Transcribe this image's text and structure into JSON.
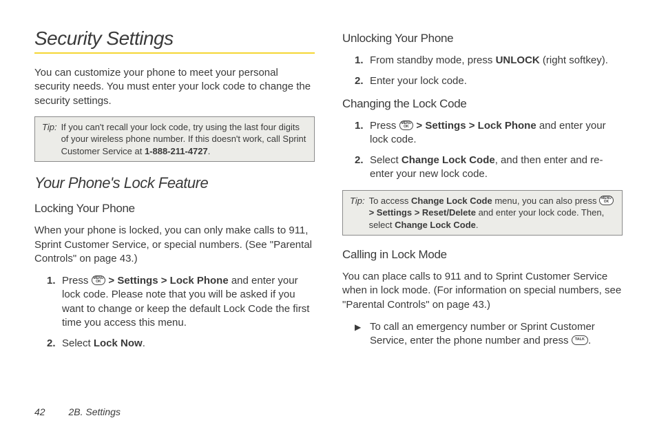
{
  "colors": {
    "accent_underline": "#f5d633",
    "tip_bg": "#ecece8",
    "tip_border": "#8a8a8a",
    "text": "#3a3a3a",
    "page_bg": "#ffffff"
  },
  "title": "Security Settings",
  "intro": "You can customize your phone to meet your personal security needs. You must enter your lock code to change the security settings.",
  "tip1_label": "Tip:",
  "tip1_text_a": "If you can't recall your lock code, try using the last four digits of your wireless phone number. If this doesn't work, call Sprint Customer Service at ",
  "tip1_phone": "1-888-211-4727",
  "tip1_text_b": ".",
  "h2_lock": "Your Phone's Lock Feature",
  "h3_locking": "Locking Your Phone",
  "locking_intro": "When your phone is locked, you can only make calls to 911, Sprint Customer Service, or special numbers. (See \"Parental Controls\" on page 43.)",
  "lock_step1_a": "Press ",
  "menu_ok_l1": "MENU",
  "menu_ok_l2": "OK",
  "gt": ">",
  "nav_settings": "Settings",
  "nav_lockphone": "Lock Phone",
  "lock_step1_b": " and enter your lock code. Please note that you will be asked if you want to change or keep the default Lock Code the first time you access this menu.",
  "lock_step2_a": "Select ",
  "lock_now": "Lock Now",
  "lock_step2_b": ".",
  "h3_unlock": "Unlocking Your Phone",
  "unlock_step1_a": "From standby mode, press ",
  "unlock_key": "UNLOCK",
  "unlock_step1_b": " (right softkey).",
  "unlock_step2": "Enter your lock code.",
  "h3_change": "Changing the Lock Code",
  "change_step1_a": "Press ",
  "change_step1_b": " and enter your lock code.",
  "change_step2_a": "Select ",
  "change_lock_code": "Change Lock Code",
  "change_step2_b": ", and then enter and re-enter your new lock code.",
  "tip2_label": "Tip:",
  "tip2_a": "To access ",
  "tip2_b": " menu, you can also press ",
  "nav_reset": "Reset/Delete",
  "tip2_c": " and enter your lock code. Then, select ",
  "tip2_d": ".",
  "h3_calling": "Calling in Lock Mode",
  "calling_intro": "You can place calls to 911 and to Sprint Customer Service when in lock mode. (For information on special numbers, see \"Parental Controls\" on page 43.)",
  "calling_bullet_a": "To call an emergency number or Sprint Customer Service, enter the phone number and press ",
  "talk_label": "TALK",
  "calling_bullet_b": ".",
  "footer_page": "42",
  "footer_section": "2B. Settings",
  "list_numbers": {
    "n1": "1.",
    "n2": "2."
  },
  "bullet_glyph": "▶"
}
